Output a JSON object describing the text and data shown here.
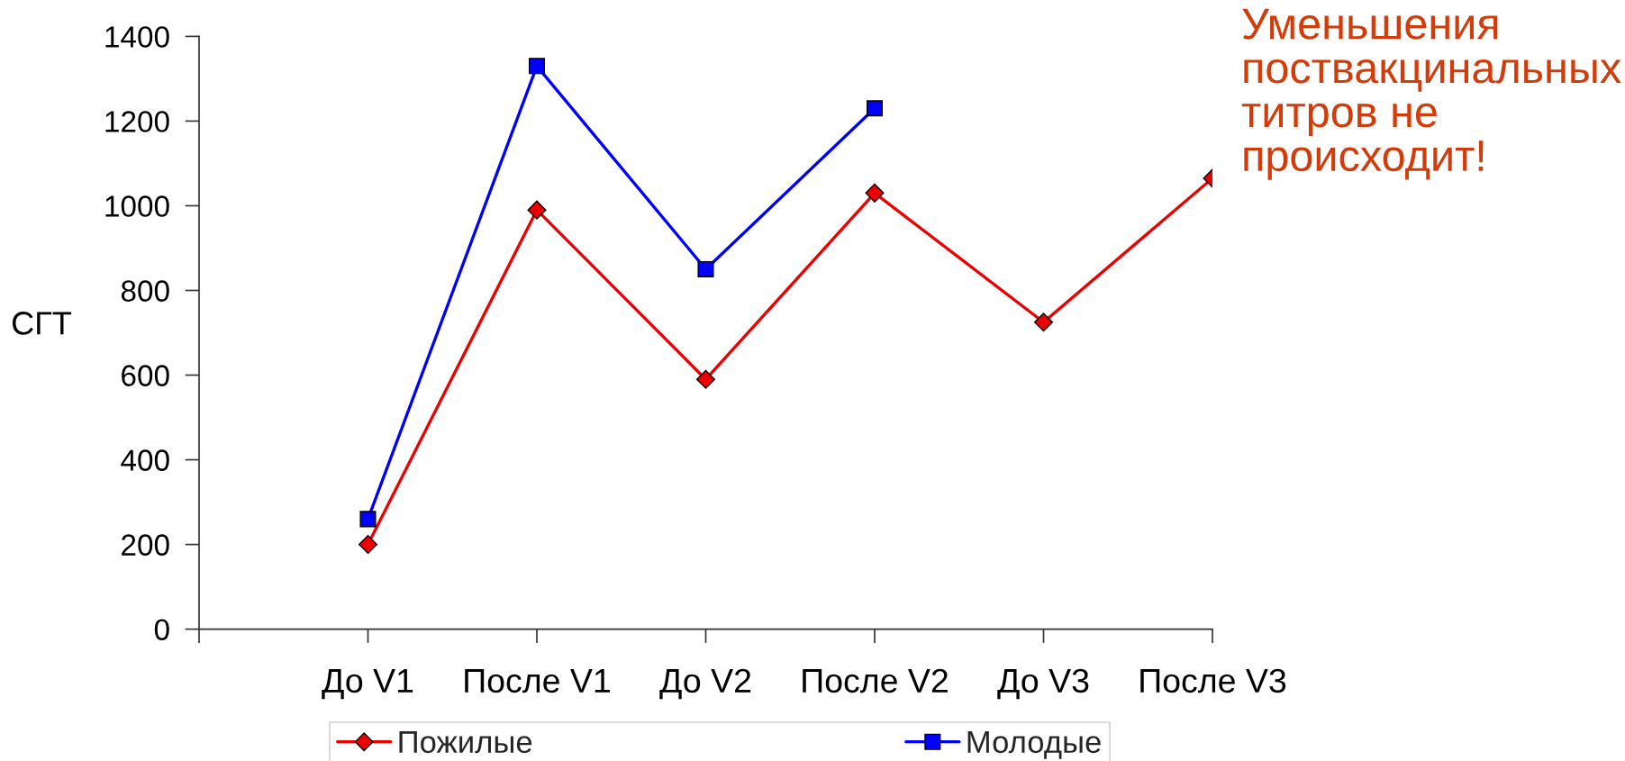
{
  "chart_data": {
    "type": "line",
    "ylabel": "СГТ",
    "categories": [
      "До V1",
      "После V1",
      "До V2",
      "После V2",
      "До V3",
      "После V3"
    ],
    "series": [
      {
        "name": "Пожилые",
        "color": "#ee0000",
        "marker": "diamond",
        "values": [
          200,
          990,
          590,
          1030,
          725,
          1065
        ]
      },
      {
        "name": "Молодые",
        "color": "#0000ff",
        "marker": "square",
        "values": [
          260,
          1330,
          850,
          1230,
          null,
          null
        ]
      }
    ],
    "ylim": [
      0,
      1400
    ],
    "yticks": [
      0,
      200,
      400,
      600,
      800,
      1000,
      1200,
      1400
    ],
    "grid": false,
    "legend": "bottom",
    "line_style": "solid",
    "annotations": [
      "Уменьшения поствакцинальных титров не происходит!"
    ]
  }
}
